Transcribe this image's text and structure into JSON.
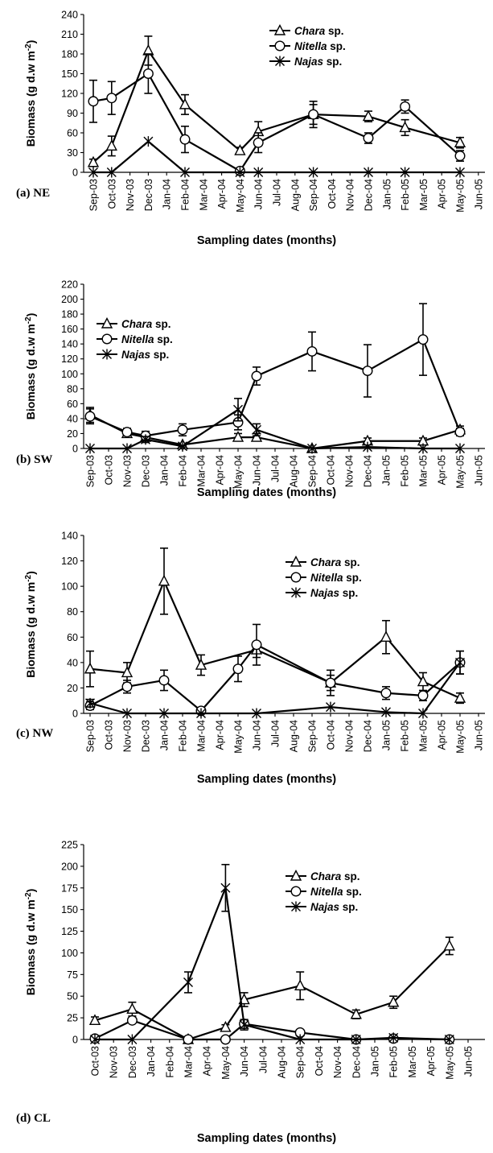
{
  "shared": {
    "months": [
      "Sep-03",
      "Oct-03",
      "Nov-03",
      "Dec-03",
      "Jan-04",
      "Feb-04",
      "Mar-04",
      "Apr-04",
      "May-04",
      "Jun-04",
      "Jul-04",
      "Aug-04",
      "Sep-04",
      "Oct-04",
      "Nov-04",
      "Dec-04",
      "Jan-05",
      "Feb-05",
      "Mar-05",
      "Apr-05",
      "May-05",
      "Jun-05"
    ],
    "ylabel_prefix": "Biomass (g d.w m",
    "ylabel_sup": "-2",
    "ylabel_suffix": ")",
    "xlabel": "Sampling dates (months)",
    "legend": [
      {
        "italic": "Chara",
        "rest": " sp.",
        "marker": "triangle"
      },
      {
        "italic": "Nitella",
        "rest": " sp.",
        "marker": "circle"
      },
      {
        "italic": "Najas",
        "rest": " sp.",
        "marker": "asterisk"
      }
    ]
  },
  "chart_data": [
    {
      "type": "line",
      "label": "(a) NE",
      "ylim": [
        0,
        240
      ],
      "yticks": [
        0,
        30,
        60,
        90,
        120,
        150,
        180,
        210,
        240
      ],
      "xlabel": "Sampling dates (months)",
      "ylabel": "Biomass (g d.w m-2)",
      "x_categories": [
        "Sep-03",
        "Oct-03",
        "Nov-03",
        "Dec-03",
        "Jan-04",
        "Feb-04",
        "Mar-04",
        "Apr-04",
        "May-04",
        "Jun-04",
        "Jul-04",
        "Aug-04",
        "Sep-04",
        "Oct-04",
        "Nov-04",
        "Dec-04",
        "Jan-05",
        "Feb-05",
        "Mar-05",
        "Apr-05",
        "May-05",
        "Jun-05"
      ],
      "grid": false,
      "legend_position": "top-right",
      "series": [
        {
          "name": "Chara sp.",
          "marker": "triangle",
          "points": [
            {
              "x": "Sep-03",
              "y": 15,
              "err": 5
            },
            {
              "x": "Oct-03",
              "y": 40,
              "err": 15
            },
            {
              "x": "Dec-03",
              "y": 185,
              "err": 22
            },
            {
              "x": "Feb-04",
              "y": 103,
              "err": 15
            },
            {
              "x": "May-04",
              "y": 33,
              "err": 5
            },
            {
              "x": "Jun-04",
              "y": 62,
              "err": 15
            },
            {
              "x": "Sep-04",
              "y": 88,
              "err": 20
            },
            {
              "x": "Dec-04",
              "y": 85,
              "err": 8
            },
            {
              "x": "Feb-05",
              "y": 68,
              "err": 12
            },
            {
              "x": "May-05",
              "y": 45,
              "err": 8
            }
          ]
        },
        {
          "name": "Nitella sp.",
          "marker": "circle",
          "points": [
            {
              "x": "Sep-03",
              "y": 108,
              "err": 32
            },
            {
              "x": "Oct-03",
              "y": 113,
              "err": 25
            },
            {
              "x": "Dec-03",
              "y": 150,
              "err": 30
            },
            {
              "x": "Feb-04",
              "y": 50,
              "err": 20
            },
            {
              "x": "May-04",
              "y": 2,
              "err": 0
            },
            {
              "x": "Jun-04",
              "y": 45,
              "err": 15
            },
            {
              "x": "Sep-04",
              "y": 88,
              "err": 15
            },
            {
              "x": "Dec-04",
              "y": 52,
              "err": 8
            },
            {
              "x": "Feb-05",
              "y": 100,
              "err": 10
            },
            {
              "x": "May-05",
              "y": 25,
              "err": 8
            }
          ]
        },
        {
          "name": "Najas sp.",
          "marker": "asterisk",
          "points": [
            {
              "x": "Sep-03",
              "y": 0
            },
            {
              "x": "Oct-03",
              "y": 0
            },
            {
              "x": "Dec-03",
              "y": 47
            },
            {
              "x": "Feb-04",
              "y": 0
            },
            {
              "x": "May-04",
              "y": 0
            },
            {
              "x": "Jun-04",
              "y": 0
            },
            {
              "x": "Sep-04",
              "y": 0
            },
            {
              "x": "Dec-04",
              "y": 0
            },
            {
              "x": "Feb-05",
              "y": 0
            },
            {
              "x": "May-05",
              "y": 0
            }
          ]
        }
      ]
    },
    {
      "type": "line",
      "label": "(b) SW",
      "ylim": [
        0,
        220
      ],
      "yticks": [
        0,
        20,
        40,
        60,
        80,
        100,
        120,
        140,
        160,
        180,
        200,
        220
      ],
      "xlabel": "Sampling dates (months)",
      "ylabel": "Biomass (g d.w m-2)",
      "x_categories": [
        "Sep-03",
        "Oct-03",
        "Nov-03",
        "Dec-03",
        "Jan-04",
        "Feb-04",
        "Mar-04",
        "Apr-04",
        "May-04",
        "Jun-04",
        "Jul-04",
        "Aug-04",
        "Sep-04",
        "Oct-04",
        "Nov-04",
        "Dec-04",
        "Jan-05",
        "Feb-05",
        "Mar-05",
        "Apr-05",
        "May-05",
        "Jun-05"
      ],
      "grid": false,
      "legend_position": "top-left",
      "series": [
        {
          "name": "Chara sp.",
          "marker": "triangle",
          "points": [
            {
              "x": "Sep-03",
              "y": 45,
              "err": 10
            },
            {
              "x": "Nov-03",
              "y": 20,
              "err": 5
            },
            {
              "x": "Dec-03",
              "y": 15,
              "err": 5
            },
            {
              "x": "Feb-04",
              "y": 5,
              "err": 2
            },
            {
              "x": "May-04",
              "y": 15,
              "err": 5
            },
            {
              "x": "Jun-04",
              "y": 15,
              "err": 5
            },
            {
              "x": "Sep-04",
              "y": 0
            },
            {
              "x": "Dec-04",
              "y": 10,
              "err": 4
            },
            {
              "x": "Mar-05",
              "y": 10,
              "err": 4
            },
            {
              "x": "May-05",
              "y": 25,
              "err": 5
            }
          ]
        },
        {
          "name": "Nitella sp.",
          "marker": "circle",
          "points": [
            {
              "x": "Sep-03",
              "y": 43,
              "err": 10
            },
            {
              "x": "Nov-03",
              "y": 22,
              "err": 5
            },
            {
              "x": "Dec-03",
              "y": 17,
              "err": 6
            },
            {
              "x": "Feb-04",
              "y": 25,
              "err": 8
            },
            {
              "x": "May-04",
              "y": 35,
              "err": 10
            },
            {
              "x": "Jun-04",
              "y": 97,
              "err": 12
            },
            {
              "x": "Sep-04",
              "y": 130,
              "err": 26
            },
            {
              "x": "Dec-04",
              "y": 104,
              "err": 35
            },
            {
              "x": "Mar-05",
              "y": 146,
              "err": 48
            },
            {
              "x": "May-05",
              "y": 22,
              "err": 5
            }
          ]
        },
        {
          "name": "Najas sp.",
          "marker": "asterisk",
          "points": [
            {
              "x": "Sep-03",
              "y": 0
            },
            {
              "x": "Nov-03",
              "y": 0
            },
            {
              "x": "Dec-03",
              "y": 12,
              "err": 4
            },
            {
              "x": "Feb-04",
              "y": 3,
              "err": 1
            },
            {
              "x": "May-04",
              "y": 52,
              "err": 15
            },
            {
              "x": "Jun-04",
              "y": 25,
              "err": 8
            },
            {
              "x": "Sep-04",
              "y": 0
            },
            {
              "x": "Dec-04",
              "y": 2
            },
            {
              "x": "Mar-05",
              "y": 0
            },
            {
              "x": "May-05",
              "y": 0
            }
          ]
        }
      ]
    },
    {
      "type": "line",
      "label": "(c) NW",
      "ylim": [
        0,
        140
      ],
      "yticks": [
        0,
        20,
        40,
        60,
        80,
        100,
        120,
        140
      ],
      "xlabel": "Sampling dates (months)",
      "ylabel": "Biomass (g d.w m-2)",
      "x_categories": [
        "Sep-03",
        "Oct-03",
        "Nov-03",
        "Dec-03",
        "Jan-04",
        "Feb-04",
        "Mar-04",
        "Apr-04",
        "May-04",
        "Jun-04",
        "Jul-04",
        "Aug-04",
        "Sep-04",
        "Oct-04",
        "Nov-04",
        "Dec-04",
        "Jan-05",
        "Feb-05",
        "Mar-05",
        "Apr-05",
        "May-05",
        "Jun-05"
      ],
      "grid": false,
      "legend_position": "top-right",
      "series": [
        {
          "name": "Chara sp.",
          "marker": "triangle",
          "points": [
            {
              "x": "Sep-03",
              "y": 35,
              "err": 14
            },
            {
              "x": "Nov-03",
              "y": 32,
              "err": 8
            },
            {
              "x": "Jan-04",
              "y": 104,
              "err": 26
            },
            {
              "x": "Mar-04",
              "y": 38,
              "err": 8
            },
            {
              "x": "Jun-04",
              "y": 50,
              "err": 6
            },
            {
              "x": "Oct-04",
              "y": 24,
              "err": 6
            },
            {
              "x": "Jan-05",
              "y": 60,
              "err": 13
            },
            {
              "x": "Mar-05",
              "y": 25,
              "err": 7
            },
            {
              "x": "May-05",
              "y": 12,
              "err": 4
            }
          ]
        },
        {
          "name": "Nitella sp.",
          "marker": "circle",
          "points": [
            {
              "x": "Sep-03",
              "y": 6,
              "err": 3
            },
            {
              "x": "Nov-03",
              "y": 21,
              "err": 5
            },
            {
              "x": "Jan-04",
              "y": 26,
              "err": 8
            },
            {
              "x": "Mar-04",
              "y": 2
            },
            {
              "x": "May-04",
              "y": 35,
              "err": 10
            },
            {
              "x": "Jun-04",
              "y": 54,
              "err": 16
            },
            {
              "x": "Oct-04",
              "y": 24,
              "err": 10
            },
            {
              "x": "Jan-05",
              "y": 16,
              "err": 5
            },
            {
              "x": "Mar-05",
              "y": 14,
              "err": 4
            },
            {
              "x": "May-05",
              "y": 40,
              "err": 9
            }
          ]
        },
        {
          "name": "Najas sp.",
          "marker": "asterisk",
          "points": [
            {
              "x": "Sep-03",
              "y": 8,
              "err": 3
            },
            {
              "x": "Nov-03",
              "y": 0
            },
            {
              "x": "Jan-04",
              "y": 0
            },
            {
              "x": "Mar-04",
              "y": 0
            },
            {
              "x": "Jun-04",
              "y": 0
            },
            {
              "x": "Oct-04",
              "y": 5
            },
            {
              "x": "Jan-05",
              "y": 1
            },
            {
              "x": "Mar-05",
              "y": 0
            },
            {
              "x": "May-05",
              "y": 40,
              "err": 9
            }
          ]
        }
      ]
    },
    {
      "type": "line",
      "label": "(d) CL",
      "ylim": [
        0,
        225
      ],
      "yticks": [
        0,
        25,
        50,
        75,
        100,
        125,
        150,
        175,
        200,
        225
      ],
      "xlabel": "Sampling dates (months)",
      "ylabel": "Biomass (g d.w m-2)",
      "x_categories": [
        "Oct-03",
        "Nov-03",
        "Dec-03",
        "Jan-04",
        "Feb-04",
        "Mar-04",
        "Apr-04",
        "May-04",
        "Jun-04",
        "Jul-04",
        "Aug-04",
        "Sep-04",
        "Oct-04",
        "Nov-04",
        "Dec-04",
        "Jan-05",
        "Feb-05",
        "Mar-05",
        "Apr-05",
        "May-05",
        "Jun-05"
      ],
      "grid": false,
      "legend_position": "top-right",
      "series": [
        {
          "name": "Chara sp.",
          "marker": "triangle",
          "points": [
            {
              "x": "Oct-03",
              "y": 22,
              "err": 4
            },
            {
              "x": "Dec-03",
              "y": 35,
              "err": 8
            },
            {
              "x": "Mar-04",
              "y": 0
            },
            {
              "x": "May-04",
              "y": 14,
              "err": 3
            },
            {
              "x": "Jun-04",
              "y": 46,
              "err": 8
            },
            {
              "x": "Sep-04",
              "y": 62,
              "err": 16
            },
            {
              "x": "Dec-04",
              "y": 29,
              "err": 5
            },
            {
              "x": "Feb-05",
              "y": 43,
              "err": 7
            },
            {
              "x": "May-05",
              "y": 108,
              "err": 10
            }
          ]
        },
        {
          "name": "Nitella sp.",
          "marker": "circle",
          "points": [
            {
              "x": "Oct-03",
              "y": 1
            },
            {
              "x": "Dec-03",
              "y": 22
            },
            {
              "x": "Mar-04",
              "y": 0
            },
            {
              "x": "May-04",
              "y": 0
            },
            {
              "x": "Jun-04",
              "y": 18,
              "err": 5
            },
            {
              "x": "Sep-04",
              "y": 8
            },
            {
              "x": "Dec-04",
              "y": 0
            },
            {
              "x": "Feb-05",
              "y": 1
            },
            {
              "x": "May-05",
              "y": 0
            }
          ]
        },
        {
          "name": "Najas sp.",
          "marker": "asterisk",
          "points": [
            {
              "x": "Oct-03",
              "y": 0
            },
            {
              "x": "Dec-03",
              "y": 0
            },
            {
              "x": "Mar-04",
              "y": 66,
              "err": 12
            },
            {
              "x": "May-04",
              "y": 175,
              "err": 27
            },
            {
              "x": "Jun-04",
              "y": 17,
              "err": 6
            },
            {
              "x": "Sep-04",
              "y": 0
            },
            {
              "x": "Dec-04",
              "y": 0
            },
            {
              "x": "Feb-05",
              "y": 2
            },
            {
              "x": "May-05",
              "y": 0
            }
          ]
        }
      ]
    }
  ]
}
